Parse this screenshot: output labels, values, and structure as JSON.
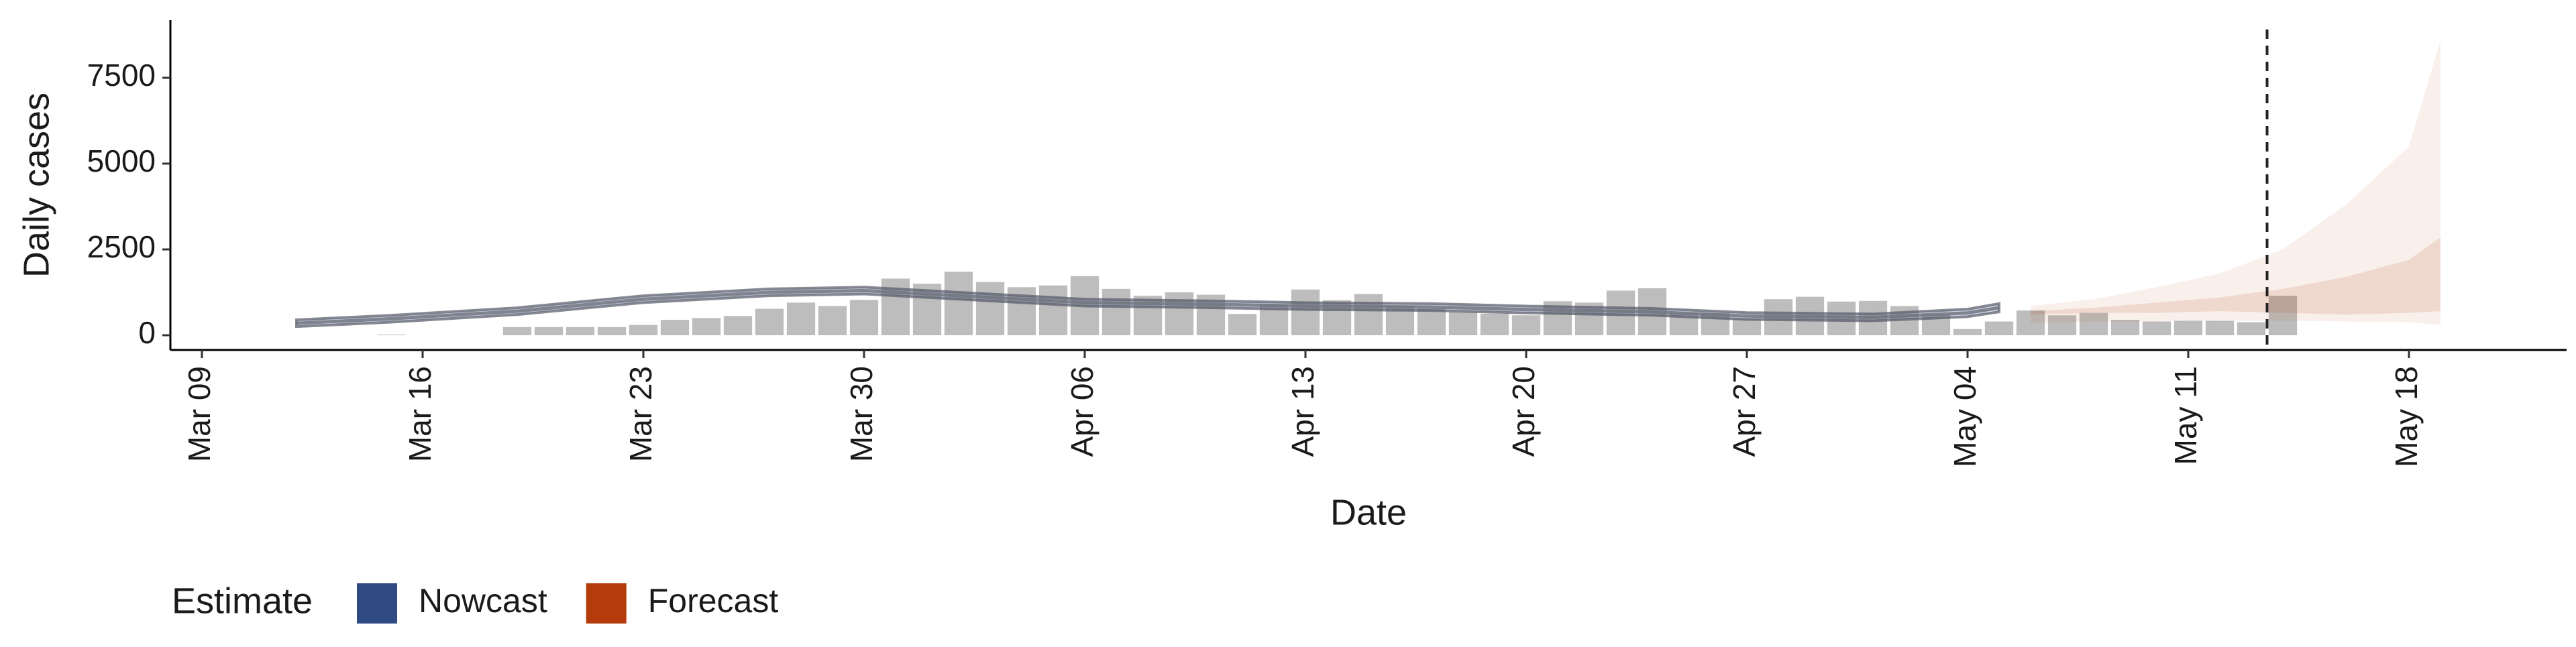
{
  "chart_data": {
    "type": "bar-bands",
    "xlabel": "Date",
    "ylabel": "Daily cases",
    "x": [
      6,
      10,
      11,
      12,
      13,
      14,
      15,
      16,
      17,
      18,
      19,
      20,
      21,
      22,
      23,
      24,
      25,
      26,
      27,
      28,
      29,
      30,
      31,
      32,
      33,
      34,
      35,
      36,
      37,
      38,
      39,
      40,
      41,
      42,
      43,
      44,
      45,
      46,
      47,
      48,
      49,
      50,
      51,
      52,
      53,
      54,
      55,
      56,
      57,
      58,
      59,
      60,
      61,
      62,
      63,
      64,
      65,
      66
    ],
    "values": [
      20,
      240,
      240,
      240,
      240,
      300,
      450,
      500,
      560,
      770,
      950,
      850,
      1030,
      1650,
      1500,
      1850,
      1550,
      1400,
      1450,
      1720,
      1350,
      1150,
      1250,
      1180,
      620,
      900,
      1330,
      1020,
      1200,
      850,
      780,
      680,
      630,
      580,
      990,
      950,
      1300,
      1370,
      650,
      650,
      480,
      1050,
      1120,
      980,
      1000,
      850,
      600,
      180,
      400,
      720,
      580,
      650,
      450,
      400,
      420,
      420,
      380,
      1150
    ],
    "bar_color": "#bdbdbd",
    "series": [
      {
        "name": "Nowcast",
        "color": "#2f4a83",
        "x": [
          3,
          6,
          10,
          14,
          18,
          21,
          25,
          28,
          32,
          35,
          39,
          42,
          46,
          49,
          53,
          56,
          57
        ],
        "values": [
          350,
          480,
          700,
          1050,
          1250,
          1300,
          1100,
          950,
          900,
          850,
          820,
          750,
          680,
          560,
          520,
          650,
          800
        ],
        "lower": [
          250,
          380,
          600,
          950,
          1150,
          1200,
          1000,
          850,
          800,
          750,
          720,
          650,
          580,
          460,
          420,
          540,
          680
        ],
        "upper": [
          450,
          580,
          800,
          1150,
          1350,
          1400,
          1200,
          1050,
          1000,
          950,
          920,
          850,
          780,
          660,
          620,
          760,
          920
        ]
      },
      {
        "name": "Forecast",
        "color": "#b33b0c",
        "x": [
          58,
          60,
          62,
          64,
          66,
          68,
          70,
          71
        ],
        "lower": [
          350,
          400,
          400,
          420,
          420,
          400,
          380,
          300
        ],
        "upper": [
          850,
          1050,
          1400,
          1800,
          2500,
          3800,
          5500,
          8600
        ],
        "inner_lower": [
          600,
          650,
          650,
          700,
          650,
          600,
          650,
          700
        ],
        "inner_upper": [
          700,
          800,
          950,
          1100,
          1350,
          1700,
          2200,
          2850
        ]
      }
    ],
    "vline": 65.5,
    "legend_title": "Estimate",
    "xlim": [
      -1,
      75
    ],
    "ylim": [
      -430,
      9180
    ],
    "xticks": [
      {
        "value": 0,
        "label": "Mar 09"
      },
      {
        "value": 7,
        "label": "Mar 16"
      },
      {
        "value": 14,
        "label": "Mar 23"
      },
      {
        "value": 21,
        "label": "Mar 30"
      },
      {
        "value": 28,
        "label": "Apr 06"
      },
      {
        "value": 35,
        "label": "Apr 13"
      },
      {
        "value": 42,
        "label": "Apr 20"
      },
      {
        "value": 49,
        "label": "Apr 27"
      },
      {
        "value": 56,
        "label": "May 04"
      },
      {
        "value": 63,
        "label": "May 11"
      },
      {
        "value": 70,
        "label": "May 18"
      }
    ],
    "yticks": [
      0,
      2500,
      5000,
      7500
    ]
  }
}
